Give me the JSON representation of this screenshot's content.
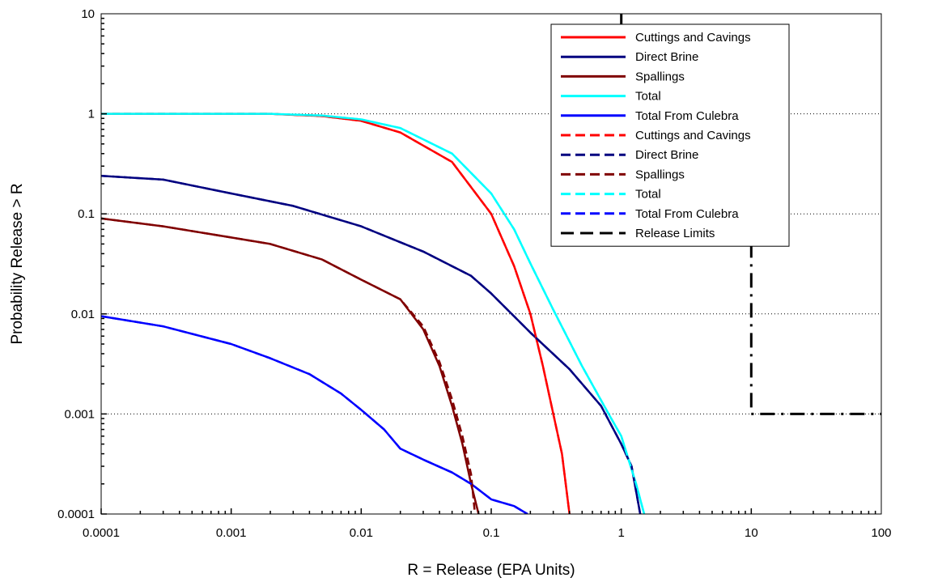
{
  "chart_data": {
    "type": "line",
    "title": "",
    "xlabel": "R = Release (EPA Units)",
    "ylabel": "Probability Release > R",
    "x_scale": "log",
    "y_scale": "log",
    "xlim": [
      0.0001,
      100
    ],
    "ylim": [
      0.0001,
      10
    ],
    "x_tick_labels": [
      "0.0001",
      "0.001",
      "0.01",
      "0.1",
      "1",
      "10",
      "100"
    ],
    "y_tick_labels": [
      "0.0001",
      "0.001",
      "0.01",
      "0.1",
      "1",
      "10"
    ],
    "grid": "horizontal dotted at major y ticks",
    "legend_position": "top-right",
    "series": [
      {
        "name": "Cuttings and Cavings",
        "color": "#ff0000",
        "style": "solid",
        "points": [
          [
            0.0001,
            1
          ],
          [
            0.002,
            1
          ],
          [
            0.005,
            0.95
          ],
          [
            0.01,
            0.85
          ],
          [
            0.02,
            0.65
          ],
          [
            0.05,
            0.33
          ],
          [
            0.1,
            0.1
          ],
          [
            0.15,
            0.03
          ],
          [
            0.2,
            0.01
          ],
          [
            0.25,
            0.003
          ],
          [
            0.3,
            0.001
          ],
          [
            0.35,
            0.0004
          ],
          [
            0.4,
            0.0001
          ]
        ]
      },
      {
        "name": "Direct Brine",
        "color": "#000080",
        "style": "solid",
        "points": [
          [
            0.0001,
            0.24
          ],
          [
            0.0003,
            0.22
          ],
          [
            0.001,
            0.16
          ],
          [
            0.003,
            0.12
          ],
          [
            0.01,
            0.075
          ],
          [
            0.03,
            0.042
          ],
          [
            0.07,
            0.024
          ],
          [
            0.1,
            0.016
          ],
          [
            0.2,
            0.0065
          ],
          [
            0.4,
            0.0028
          ],
          [
            0.7,
            0.0012
          ],
          [
            1,
            0.0005
          ],
          [
            1.2,
            0.0003
          ],
          [
            1.4,
            0.0001
          ]
        ]
      },
      {
        "name": "Spallings",
        "color": "#800000",
        "style": "solid",
        "points": [
          [
            0.0001,
            0.09
          ],
          [
            0.0003,
            0.075
          ],
          [
            0.001,
            0.058
          ],
          [
            0.002,
            0.05
          ],
          [
            0.005,
            0.035
          ],
          [
            0.01,
            0.022
          ],
          [
            0.02,
            0.014
          ],
          [
            0.03,
            0.007
          ],
          [
            0.04,
            0.003
          ],
          [
            0.05,
            0.0012
          ],
          [
            0.06,
            0.0005
          ],
          [
            0.07,
            0.0002
          ],
          [
            0.08,
            0.0001
          ]
        ]
      },
      {
        "name": "Total",
        "color": "#00ffff",
        "style": "solid",
        "points": [
          [
            0.0001,
            1
          ],
          [
            0.002,
            1
          ],
          [
            0.005,
            0.96
          ],
          [
            0.01,
            0.88
          ],
          [
            0.02,
            0.72
          ],
          [
            0.05,
            0.4
          ],
          [
            0.1,
            0.16
          ],
          [
            0.15,
            0.07
          ],
          [
            0.2,
            0.032
          ],
          [
            0.3,
            0.011
          ],
          [
            0.5,
            0.003
          ],
          [
            0.8,
            0.001
          ],
          [
            1,
            0.0006
          ],
          [
            1.3,
            0.0002
          ],
          [
            1.5,
            0.0001
          ]
        ]
      },
      {
        "name": "Total From Culebra",
        "color": "#0000ff",
        "style": "solid",
        "points": [
          [
            0.0001,
            0.0095
          ],
          [
            0.0003,
            0.0075
          ],
          [
            0.001,
            0.005
          ],
          [
            0.002,
            0.0036
          ],
          [
            0.004,
            0.0025
          ],
          [
            0.007,
            0.0016
          ],
          [
            0.01,
            0.0011
          ],
          [
            0.015,
            0.0007
          ],
          [
            0.02,
            0.00045
          ],
          [
            0.03,
            0.00035
          ],
          [
            0.05,
            0.00026
          ],
          [
            0.07,
            0.0002
          ],
          [
            0.1,
            0.00014
          ],
          [
            0.15,
            0.00012
          ],
          [
            0.19,
            0.0001
          ]
        ]
      },
      {
        "name": "Cuttings and Cavings",
        "color": "#ff0000",
        "style": "dashed",
        "points": [
          [
            0.0001,
            1
          ],
          [
            0.002,
            1
          ],
          [
            0.005,
            0.95
          ],
          [
            0.01,
            0.85
          ],
          [
            0.02,
            0.65
          ],
          [
            0.05,
            0.33
          ],
          [
            0.1,
            0.1
          ],
          [
            0.15,
            0.03
          ],
          [
            0.2,
            0.01
          ],
          [
            0.25,
            0.003
          ],
          [
            0.3,
            0.001
          ],
          [
            0.35,
            0.0004
          ],
          [
            0.4,
            0.0001
          ]
        ]
      },
      {
        "name": "Direct Brine",
        "color": "#000080",
        "style": "dashed",
        "points": [
          [
            0.0001,
            0.24
          ],
          [
            0.0003,
            0.22
          ],
          [
            0.001,
            0.16
          ],
          [
            0.003,
            0.12
          ],
          [
            0.01,
            0.075
          ],
          [
            0.03,
            0.042
          ],
          [
            0.07,
            0.024
          ],
          [
            0.1,
            0.016
          ],
          [
            0.2,
            0.0065
          ],
          [
            0.4,
            0.0028
          ],
          [
            0.7,
            0.0012
          ],
          [
            1,
            0.0005
          ],
          [
            1.2,
            0.0003
          ],
          [
            1.4,
            0.0001
          ]
        ]
      },
      {
        "name": "Spallings",
        "color": "#800000",
        "style": "dashed",
        "points": [
          [
            0.0001,
            0.09
          ],
          [
            0.0003,
            0.075
          ],
          [
            0.001,
            0.058
          ],
          [
            0.002,
            0.05
          ],
          [
            0.005,
            0.035
          ],
          [
            0.01,
            0.022
          ],
          [
            0.02,
            0.014
          ],
          [
            0.03,
            0.0075
          ],
          [
            0.04,
            0.0033
          ],
          [
            0.05,
            0.0014
          ],
          [
            0.06,
            0.0006
          ],
          [
            0.07,
            0.00025
          ],
          [
            0.075,
            0.0001
          ]
        ]
      },
      {
        "name": "Total",
        "color": "#00ffff",
        "style": "dashed",
        "points": [
          [
            0.0001,
            1
          ],
          [
            0.002,
            1
          ],
          [
            0.005,
            0.96
          ],
          [
            0.01,
            0.88
          ],
          [
            0.02,
            0.72
          ],
          [
            0.05,
            0.4
          ],
          [
            0.1,
            0.16
          ],
          [
            0.15,
            0.07
          ],
          [
            0.2,
            0.032
          ],
          [
            0.3,
            0.011
          ],
          [
            0.5,
            0.003
          ],
          [
            0.8,
            0.001
          ],
          [
            1,
            0.0006
          ],
          [
            1.3,
            0.0002
          ],
          [
            1.5,
            0.0001
          ]
        ]
      },
      {
        "name": "Total From Culebra",
        "color": "#0000ff",
        "style": "dashed",
        "points": [
          [
            0.0001,
            0.0095
          ],
          [
            0.0003,
            0.0075
          ],
          [
            0.001,
            0.005
          ],
          [
            0.002,
            0.0036
          ],
          [
            0.004,
            0.0025
          ],
          [
            0.007,
            0.0016
          ],
          [
            0.01,
            0.0011
          ],
          [
            0.015,
            0.0007
          ],
          [
            0.02,
            0.00045
          ],
          [
            0.03,
            0.00035
          ],
          [
            0.05,
            0.00026
          ],
          [
            0.07,
            0.0002
          ],
          [
            0.1,
            0.00014
          ],
          [
            0.15,
            0.00012
          ],
          [
            0.19,
            0.0001
          ]
        ]
      },
      {
        "name": "Release Limits",
        "color": "#000000",
        "style": "longdash",
        "points": [
          [
            1,
            10
          ],
          [
            1,
            1
          ],
          [
            10,
            1
          ],
          [
            10,
            0.001
          ],
          [
            100,
            0.001
          ]
        ]
      }
    ]
  }
}
